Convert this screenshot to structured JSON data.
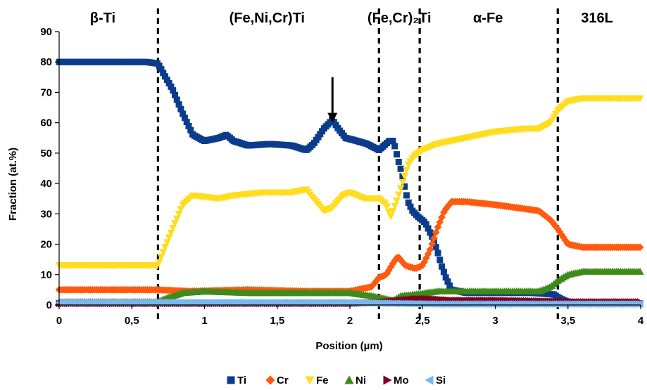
{
  "chart_data": {
    "type": "scatter",
    "title": "",
    "xlabel": "Position (µm)",
    "ylabel": "Fraction (at.%)",
    "xlim": [
      0,
      4
    ],
    "ylim": [
      0,
      90
    ],
    "x_ticks": [
      {
        "value": 0,
        "label": "0"
      },
      {
        "value": 0.5,
        "label": "0,5"
      },
      {
        "value": 1,
        "label": "1"
      },
      {
        "value": 1.5,
        "label": "1,5"
      },
      {
        "value": 2,
        "label": "2"
      },
      {
        "value": 2.5,
        "label": "2,5"
      },
      {
        "value": 3,
        "label": "3"
      },
      {
        "value": 3.5,
        "label": "3,5"
      },
      {
        "value": 4,
        "label": "4"
      }
    ],
    "y_ticks": [
      {
        "value": 0,
        "label": "0"
      },
      {
        "value": 10,
        "label": "10"
      },
      {
        "value": 20,
        "label": "20"
      },
      {
        "value": 30,
        "label": "30"
      },
      {
        "value": 40,
        "label": "40"
      },
      {
        "value": 50,
        "label": "50"
      },
      {
        "value": 60,
        "label": "60"
      },
      {
        "value": 70,
        "label": "70"
      },
      {
        "value": 80,
        "label": "80"
      },
      {
        "value": 90,
        "label": "90"
      }
    ],
    "grid": false,
    "legend_position": "bottom",
    "phase_boundaries": [
      0.68,
      2.2,
      2.48,
      3.43
    ],
    "phase_labels": [
      {
        "text": "β-Ti",
        "x": 0.3
      },
      {
        "text": "(Fe,Ni,Cr)Ti",
        "x": 1.43
      },
      {
        "text": "(Fe,Cr)₂Ti",
        "x": 2.34
      },
      {
        "text": "α-Fe",
        "x": 2.95
      },
      {
        "text": "316L",
        "x": 3.7
      }
    ],
    "arrow": {
      "x": 1.88,
      "y_from": 75,
      "y_to": 60
    },
    "series": [
      {
        "name": "Ti",
        "marker": "square",
        "color": "#0b3c8c",
        "points": [
          [
            0,
            80
          ],
          [
            0.3,
            80
          ],
          [
            0.6,
            80
          ],
          [
            0.68,
            79.5
          ],
          [
            0.72,
            76
          ],
          [
            0.78,
            71
          ],
          [
            0.85,
            63
          ],
          [
            0.92,
            56
          ],
          [
            1,
            54
          ],
          [
            1.1,
            55
          ],
          [
            1.15,
            56
          ],
          [
            1.2,
            54
          ],
          [
            1.3,
            52.5
          ],
          [
            1.45,
            53
          ],
          [
            1.6,
            52.5
          ],
          [
            1.7,
            51
          ],
          [
            1.75,
            53
          ],
          [
            1.82,
            58
          ],
          [
            1.88,
            61
          ],
          [
            1.92,
            58
          ],
          [
            1.97,
            55
          ],
          [
            2.05,
            54
          ],
          [
            2.12,
            53
          ],
          [
            2.2,
            51
          ],
          [
            2.27,
            54
          ],
          [
            2.3,
            54
          ],
          [
            2.33,
            48
          ],
          [
            2.36,
            43
          ],
          [
            2.38,
            38
          ],
          [
            2.4,
            34
          ],
          [
            2.43,
            31
          ],
          [
            2.47,
            29
          ],
          [
            2.52,
            27
          ],
          [
            2.57,
            22
          ],
          [
            2.6,
            18
          ],
          [
            2.63,
            13
          ],
          [
            2.66,
            9
          ],
          [
            2.7,
            5
          ],
          [
            2.8,
            4
          ],
          [
            3,
            4
          ],
          [
            3.25,
            4
          ],
          [
            3.4,
            3.5
          ],
          [
            3.45,
            2
          ],
          [
            3.5,
            1
          ],
          [
            3.7,
            0.5
          ],
          [
            4,
            0.5
          ]
        ]
      },
      {
        "name": "Cr",
        "marker": "diamond",
        "color": "#ff5a0e",
        "points": [
          [
            0,
            5
          ],
          [
            0.68,
            5
          ],
          [
            0.9,
            4.5
          ],
          [
            1.3,
            5
          ],
          [
            1.7,
            4.5
          ],
          [
            2.0,
            4.5
          ],
          [
            2.15,
            6
          ],
          [
            2.2,
            9
          ],
          [
            2.25,
            10
          ],
          [
            2.3,
            14
          ],
          [
            2.33,
            16
          ],
          [
            2.38,
            13
          ],
          [
            2.45,
            12
          ],
          [
            2.5,
            13
          ],
          [
            2.55,
            18
          ],
          [
            2.6,
            25
          ],
          [
            2.65,
            31
          ],
          [
            2.7,
            34
          ],
          [
            2.8,
            34
          ],
          [
            3.0,
            33
          ],
          [
            3.3,
            31
          ],
          [
            3.38,
            28
          ],
          [
            3.43,
            25
          ],
          [
            3.5,
            20
          ],
          [
            3.6,
            19
          ],
          [
            4,
            19
          ]
        ]
      },
      {
        "name": "Fe",
        "marker": "triangle-down",
        "color": "#ffdd1f",
        "points": [
          [
            0,
            13
          ],
          [
            0.68,
            13
          ],
          [
            0.72,
            18
          ],
          [
            0.78,
            25
          ],
          [
            0.85,
            33
          ],
          [
            0.92,
            36
          ],
          [
            1.1,
            35
          ],
          [
            1.2,
            36
          ],
          [
            1.4,
            37
          ],
          [
            1.6,
            37
          ],
          [
            1.7,
            38
          ],
          [
            1.75,
            35
          ],
          [
            1.82,
            31
          ],
          [
            1.88,
            32
          ],
          [
            1.95,
            36
          ],
          [
            2.0,
            37
          ],
          [
            2.1,
            35
          ],
          [
            2.2,
            35
          ],
          [
            2.25,
            33
          ],
          [
            2.28,
            29
          ],
          [
            2.32,
            34
          ],
          [
            2.36,
            40
          ],
          [
            2.4,
            46
          ],
          [
            2.44,
            49
          ],
          [
            2.5,
            51
          ],
          [
            2.6,
            53
          ],
          [
            2.8,
            55
          ],
          [
            3.0,
            57
          ],
          [
            3.2,
            58
          ],
          [
            3.3,
            58
          ],
          [
            3.38,
            60
          ],
          [
            3.43,
            64
          ],
          [
            3.5,
            67
          ],
          [
            3.6,
            68
          ],
          [
            4,
            68
          ]
        ]
      },
      {
        "name": "Ni",
        "marker": "triangle-up",
        "color": "#3f8a1a",
        "points": [
          [
            0,
            1
          ],
          [
            0.68,
            1
          ],
          [
            0.72,
            2
          ],
          [
            0.85,
            4
          ],
          [
            1.0,
            4.5
          ],
          [
            1.3,
            4
          ],
          [
            1.7,
            4
          ],
          [
            2.0,
            4
          ],
          [
            2.15,
            3
          ],
          [
            2.25,
            2
          ],
          [
            2.3,
            1.5
          ],
          [
            2.35,
            3
          ],
          [
            2.45,
            3.5
          ],
          [
            2.6,
            4.5
          ],
          [
            3.0,
            4.5
          ],
          [
            3.3,
            4.5
          ],
          [
            3.38,
            6
          ],
          [
            3.43,
            8
          ],
          [
            3.5,
            10
          ],
          [
            3.6,
            11
          ],
          [
            4,
            11
          ]
        ]
      },
      {
        "name": "Mo",
        "marker": "triangle-right",
        "color": "#800020",
        "points": [
          [
            0,
            0.5
          ],
          [
            1.0,
            0.5
          ],
          [
            2.0,
            0.5
          ],
          [
            2.2,
            0.8
          ],
          [
            2.35,
            1.5
          ],
          [
            2.45,
            2
          ],
          [
            2.55,
            2
          ],
          [
            2.7,
            1.5
          ],
          [
            3.0,
            1.5
          ],
          [
            3.4,
            1.2
          ],
          [
            3.5,
            1
          ],
          [
            4,
            1
          ]
        ]
      },
      {
        "name": "Si",
        "marker": "triangle-left",
        "color": "#7ab6ee",
        "points": [
          [
            0,
            0.8
          ],
          [
            1.0,
            0.8
          ],
          [
            2.0,
            0.8
          ],
          [
            2.3,
            0.5
          ],
          [
            2.6,
            0.3
          ],
          [
            3.0,
            0.3
          ],
          [
            3.5,
            0.3
          ],
          [
            4,
            0.3
          ]
        ]
      }
    ]
  }
}
